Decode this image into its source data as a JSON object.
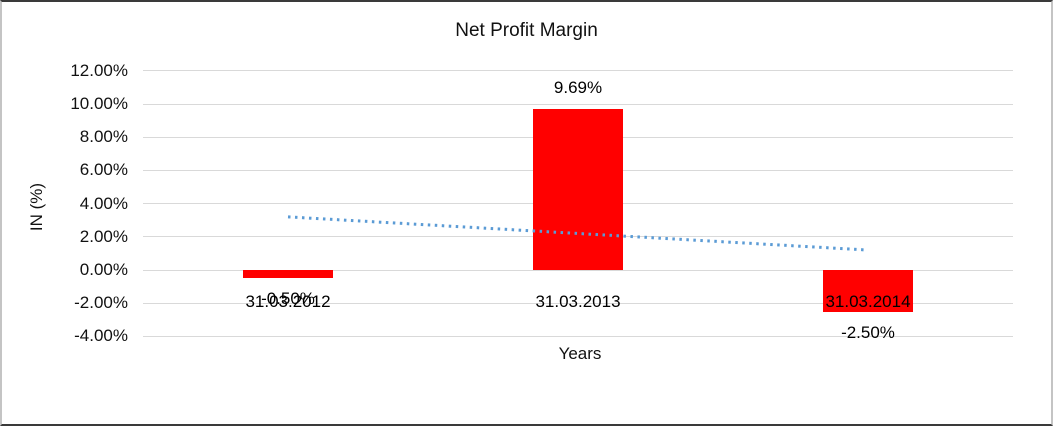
{
  "chart_data": {
    "type": "bar",
    "title": "Net Profit Margin",
    "xlabel": "Years",
    "ylabel": "IN (%)",
    "categories": [
      "31.03.2012",
      "31.03.2013",
      "31.03.2014"
    ],
    "values": [
      -0.5,
      9.69,
      -2.5
    ],
    "data_labels": [
      "-0.50%",
      "9.69%",
      "-2.50%"
    ],
    "ylim": [
      -4,
      12
    ],
    "ytick_step": 2,
    "ytick_labels": [
      "12.00%",
      "10.00%",
      "8.00%",
      "6.00%",
      "4.00%",
      "2.00%",
      "0.00%",
      "-2.00%",
      "-4.00%"
    ],
    "legend": "none",
    "grid": "horizontal",
    "colors": {
      "bar": "#ff0000",
      "trendline": "#5b9bd5",
      "gridline": "#d9d9d9",
      "text": "#111111"
    },
    "trendline": {
      "style": "dotted",
      "start_value": 3.2,
      "end_value": 1.2
    }
  }
}
